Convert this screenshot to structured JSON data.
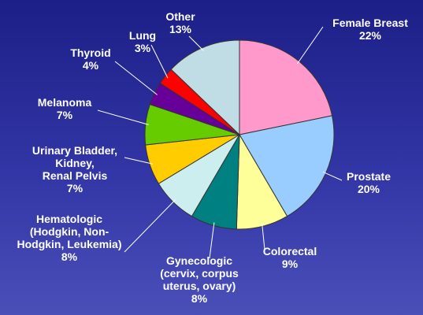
{
  "chart_data": {
    "type": "pie",
    "slices": [
      {
        "label": "Female Breast",
        "lines": [
          "Female Breast"
        ],
        "pct_label": "22%",
        "value": 22,
        "color": "#ff99cc"
      },
      {
        "label": "Prostate",
        "lines": [
          "Prostate"
        ],
        "pct_label": "20%",
        "value": 20,
        "color": "#99ccff"
      },
      {
        "label": "Colorectal",
        "lines": [
          "Colorectal"
        ],
        "pct_label": "9%",
        "value": 9,
        "color": "#ffff99"
      },
      {
        "label": "Gynecologic (cervix, corpus uterus, ovary)",
        "lines": [
          "Gynecologic",
          "(cervix, corpus",
          "uterus, ovary)"
        ],
        "pct_label": "8%",
        "value": 8,
        "color": "#008080"
      },
      {
        "label": "Hematologic (Hodgkin, Non-Hodgkin, Leukemia)",
        "lines": [
          "Hematologic",
          "(Hodgkin, Non-",
          "Hodgkin, Leukemia)"
        ],
        "pct_label": "8%",
        "value": 8,
        "color": "#cceeee"
      },
      {
        "label": "Urinary Bladder, Kidney, Renal Pelvis",
        "lines": [
          "Urinary Bladder,",
          "Kidney,",
          "Renal Pelvis"
        ],
        "pct_label": "7%",
        "value": 7,
        "color": "#ffcc00"
      },
      {
        "label": "Melanoma",
        "lines": [
          "Melanoma"
        ],
        "pct_label": "7%",
        "value": 7,
        "color": "#66cc00"
      },
      {
        "label": "Thyroid",
        "lines": [
          "Thyroid"
        ],
        "pct_label": "4%",
        "value": 4,
        "color": "#660099"
      },
      {
        "label": "Lung",
        "lines": [
          "Lung"
        ],
        "pct_label": "3%",
        "value": 3,
        "color": "#ff0000"
      },
      {
        "label": "Other",
        "lines": [
          "Other"
        ],
        "pct_label": "13%",
        "value": 13,
        "color": "#c0dde6"
      }
    ]
  }
}
